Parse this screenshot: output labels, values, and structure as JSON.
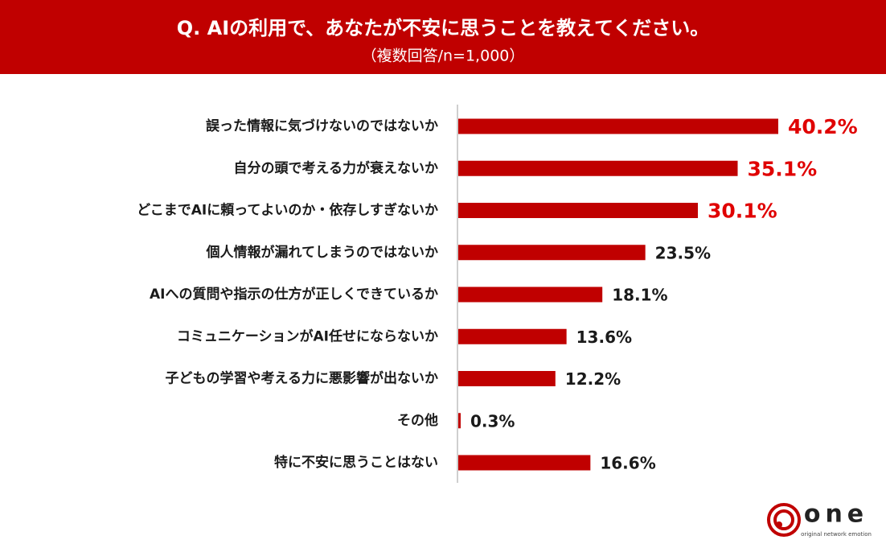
{
  "chart_data": {
    "type": "bar",
    "orientation": "horizontal",
    "title": "Q. AIの利用で、あなたが不安に思うことを教えてください。",
    "subtitle": "（複数回答/n=1,000）",
    "categories": [
      "誤った情報に気づけないのではないか",
      "自分の頭で考える力が衰えないか",
      "どこまでAIに頼ってよいのか・依存しすぎないか",
      "個人情報が漏れてしまうのではないか",
      "AIへの質問や指示の仕方が正しくできているか",
      "コミュニケーションがAI任せにならないか",
      "子どもの学習や考える力に悪影響が出ないか",
      "その他",
      "特に不安に思うことはない"
    ],
    "values": [
      40.2,
      35.1,
      30.1,
      23.5,
      18.1,
      13.6,
      12.2,
      0.3,
      16.6
    ],
    "value_labels": [
      "40.2%",
      "35.1%",
      "30.1%",
      "23.5%",
      "18.1%",
      "13.6%",
      "12.2%",
      "0.3%",
      "16.6%"
    ],
    "value_label_colors": [
      "#e00000",
      "#e00000",
      "#e00000",
      "#1a1a1a",
      "#1a1a1a",
      "#1a1a1a",
      "#1a1a1a",
      "#1a1a1a",
      "#1a1a1a"
    ],
    "color": "#c00000"
  },
  "logo": {
    "text": "one",
    "tagline": "original network emotion"
  }
}
